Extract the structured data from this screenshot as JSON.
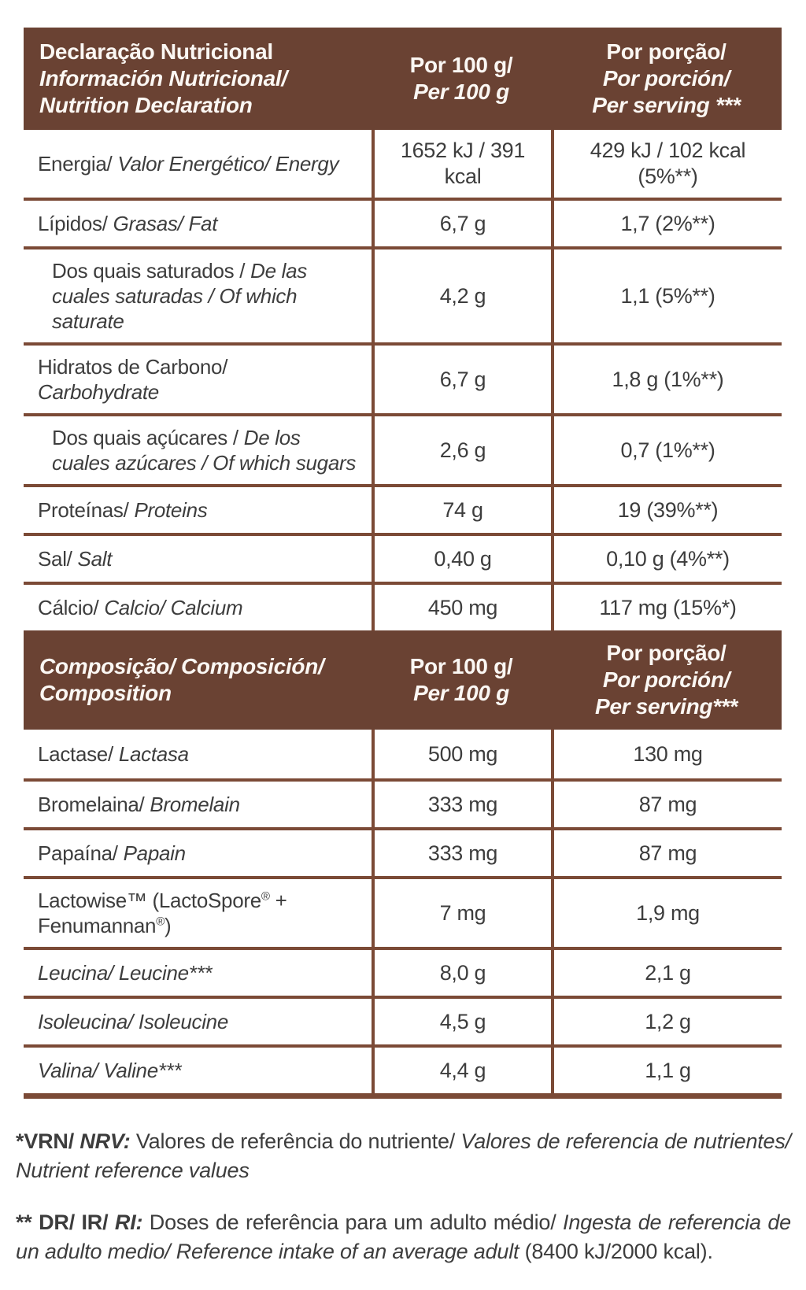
{
  "colors": {
    "header_bg": "#6A4233",
    "grid_line": "#7B4A36",
    "body_text": "#3D3D3D",
    "header_text": "#FBF7F3"
  },
  "nutrition_table": {
    "header": {
      "title_pt": "Declaração Nutricional",
      "title_es": "Información Nutricional/",
      "title_en": "Nutrition Declaration",
      "per100_pt": "Por 100 g/",
      "per100_en": "Per 100 g",
      "serving_pt": "Por porção/",
      "serving_es": "Por porción/",
      "serving_en": "Per serving ***"
    },
    "rows": [
      {
        "label": "Energia/",
        "label_i": "Valor Energético/ Energy",
        "per_100g": "1652 kJ / 391 kcal",
        "per_serving": "429 kJ / 102 kcal (5%**)",
        "indent": false
      },
      {
        "label": "Lípidos/",
        "label_i": "Grasas/ Fat",
        "per_100g": "6,7 g",
        "per_serving": "1,7 (2%**)",
        "indent": false
      },
      {
        "label": "Dos quais saturados /",
        "label_i": "De las cuales saturadas / Of which saturate",
        "per_100g": "4,2 g",
        "per_serving": "1,1 (5%**)",
        "indent": true
      },
      {
        "label": "Hidratos de Carbono/",
        "label_i": "Carbohydrate",
        "per_100g": "6,7 g",
        "per_serving": "1,8 g (1%**)",
        "indent": false
      },
      {
        "label": "Dos quais açúcares /",
        "label_i": "De los cuales azúcares / Of which sugars",
        "per_100g": "2,6 g",
        "per_serving": "0,7 (1%**)",
        "indent": true
      },
      {
        "label": "Proteínas/",
        "label_i": "Proteins",
        "per_100g": "74 g",
        "per_serving": "19 (39%**)",
        "indent": false
      },
      {
        "label": "Sal/",
        "label_i": "Salt",
        "per_100g": "0,40 g",
        "per_serving": "0,10 g (4%**)",
        "indent": false
      },
      {
        "label": "Cálcio/",
        "label_i": "Calcio/ Calcium",
        "per_100g": "450 mg",
        "per_serving": "117 mg (15%*)",
        "indent": false
      }
    ]
  },
  "composition_table": {
    "header": {
      "title": "Composição/ Composición/ Composition",
      "per100_pt": "Por 100 g/",
      "per100_en": "Per 100 g",
      "serving_pt": "Por porção/",
      "serving_es": "Por porción/",
      "serving_en": "Per serving***"
    },
    "rows": [
      {
        "label": "Lactase/",
        "label_i": "Lactasa",
        "per_100g": "500 mg",
        "per_serving": "130 mg"
      },
      {
        "label": "Bromelaina/",
        "label_i": "Bromelain",
        "per_100g": "333 mg",
        "per_serving": "87 mg"
      },
      {
        "label": "Papaína/",
        "label_i": "Papain",
        "per_100g": "333 mg",
        "per_serving": "87 mg"
      },
      {
        "label": "Lactowise™ (LactoSpore® + Fenumannan®)",
        "label_i": "",
        "per_100g": "7 mg",
        "per_serving": "1,9 mg"
      },
      {
        "label": "",
        "label_i": "Leucina/ Leucine***",
        "per_100g": "8,0 g",
        "per_serving": "2,1 g"
      },
      {
        "label": "",
        "label_i": "Isoleucina/ Isoleucine",
        "per_100g": "4,5 g",
        "per_serving": "1,2 g"
      },
      {
        "label": "",
        "label_i": "Valina/ Valine***",
        "per_100g": "4,4 g",
        "per_serving": "1,1 g"
      }
    ]
  },
  "footnotes": {
    "nrv": {
      "bold": "*VRN/",
      "bold_italic": " NRV: ",
      "regular": "Valores de referência do nutriente/ ",
      "italic": "Valores de referencia de nutrientes/ Nutrient reference values"
    },
    "ri": {
      "bold": "** DR/ IR/",
      "bold_italic": " RI: ",
      "regular": "Doses de referência para um adulto médio/ ",
      "italic": "Ingesta de referencia de un adulto medio/ Reference intake of an average adult",
      "regular_2": " (8400 kJ/2000 kcal)."
    }
  }
}
